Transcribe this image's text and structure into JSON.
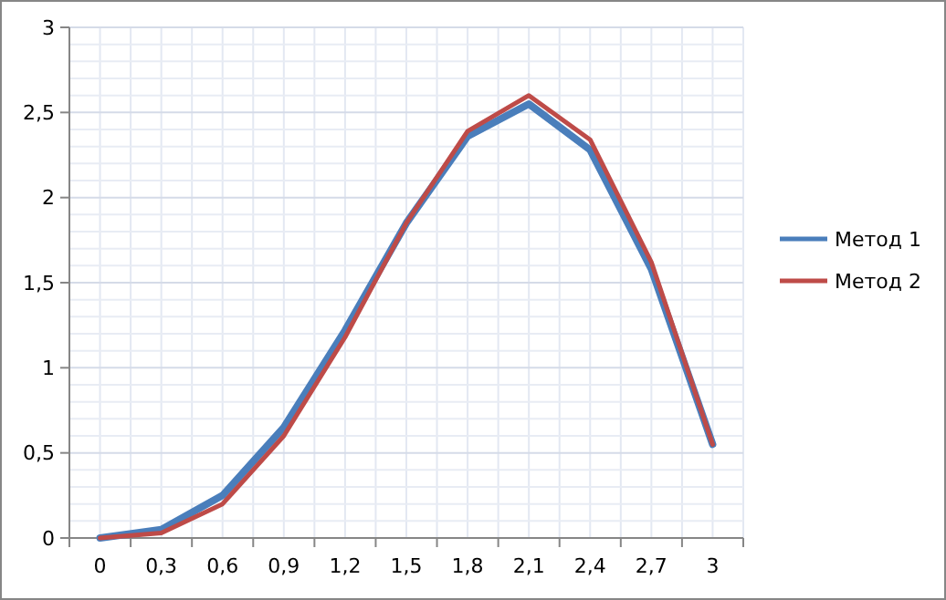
{
  "chart_data": {
    "type": "line",
    "categories": [
      "0",
      "0,3",
      "0,6",
      "0,9",
      "1,2",
      "1,5",
      "1,8",
      "2,1",
      "2,4",
      "2,7",
      "3"
    ],
    "series": [
      {
        "name": "Метод 1",
        "color": "#4a7ebb",
        "values": [
          0,
          0.05,
          0.25,
          0.65,
          1.22,
          1.85,
          2.36,
          2.55,
          2.28,
          1.58,
          0.55
        ]
      },
      {
        "name": "Метод 2",
        "color": "#be4b48",
        "values": [
          0,
          0.03,
          0.2,
          0.6,
          1.18,
          1.85,
          2.39,
          2.6,
          2.34,
          1.62,
          0.55
        ]
      }
    ],
    "ylim": [
      0,
      3
    ],
    "yticks": [
      0,
      {
        "value": 0.5,
        "label": "0,5"
      },
      1,
      {
        "value": 1.5,
        "label": "1,5"
      },
      2,
      {
        "value": 2.5,
        "label": "2,5"
      },
      3
    ],
    "grid": true,
    "legend": "right",
    "marker": "none",
    "line_style": "solid"
  }
}
